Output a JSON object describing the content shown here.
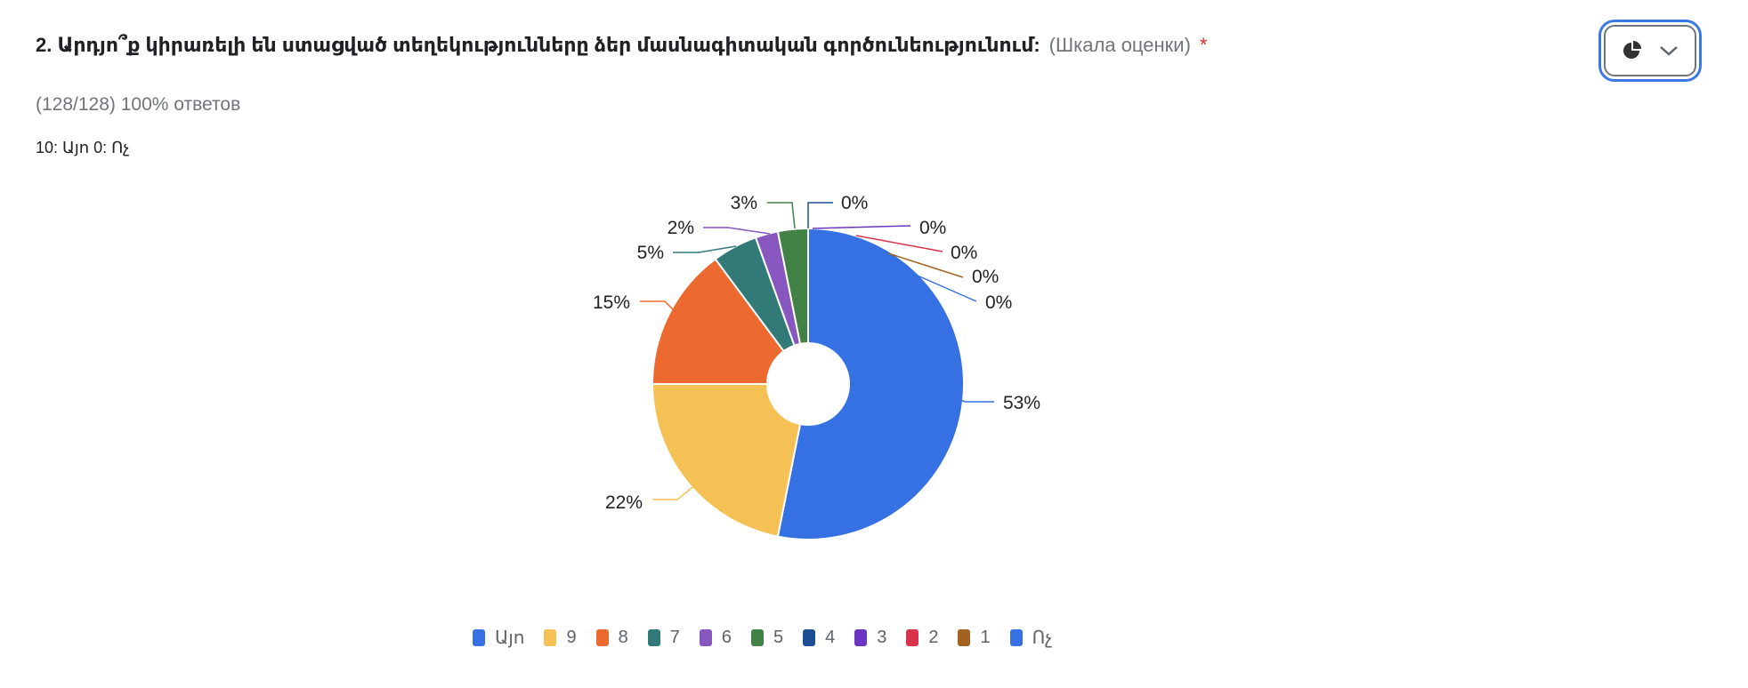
{
  "question": {
    "title": "2. Արդյո՞ք կիրառելի են ստացված տեղեկությունները ձեր մասնագիտական գործունեությունում:",
    "type_label": "(Шкала оценки)",
    "required_mark": "*"
  },
  "responses_text": "(128/128) 100% ответов",
  "scale_text": "10: Այո 0: Ոչ",
  "chart_type_button": {
    "icon": "pie-chart-icon",
    "dropdown_icon": "chevron-down-icon"
  },
  "chart_data": {
    "type": "pie",
    "donut": true,
    "categories": [
      "Այո",
      "9",
      "8",
      "7",
      "6",
      "5",
      "4",
      "3",
      "2",
      "1",
      "Ոչ"
    ],
    "values": [
      68,
      28,
      19,
      6,
      3,
      4,
      0,
      0,
      0,
      0,
      0
    ],
    "labels": [
      "53%",
      "22%",
      "15%",
      "5%",
      "2%",
      "3%",
      "0%",
      "0%",
      "0%",
      "0%",
      "0%"
    ],
    "colors": [
      "#3571e2",
      "#f5c155",
      "#ec6a30",
      "#327a78",
      "#8756bf",
      "#438247",
      "#1f4f93",
      "#6b35bf",
      "#d8334a",
      "#a3621f",
      "#3571e2"
    ],
    "legend_position": "bottom"
  }
}
